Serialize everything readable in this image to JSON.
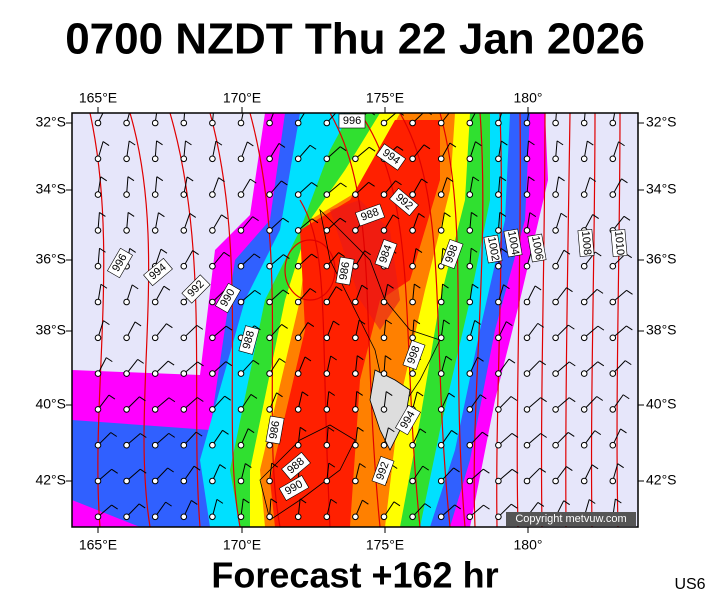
{
  "title": "0700 NZDT Thu 22 Jan 2026",
  "footer": "Forecast +162 hr",
  "code": "US6",
  "copyright": "Copyright metvuw.com",
  "longitude_labels": [
    "165°E",
    "170°E",
    "175°E",
    "180°"
  ],
  "latitude_labels": [
    "32°S",
    "34°S",
    "36°S",
    "38°S",
    "40°S",
    "42°S"
  ],
  "isobar_labels": [
    "996",
    "994",
    "992",
    "988",
    "984",
    "986",
    "998",
    "1002",
    "1004",
    "1006",
    "1008",
    "1010",
    "996",
    "994",
    "992",
    "990",
    "988",
    "986",
    "988",
    "990",
    "998",
    "994",
    "992"
  ]
}
